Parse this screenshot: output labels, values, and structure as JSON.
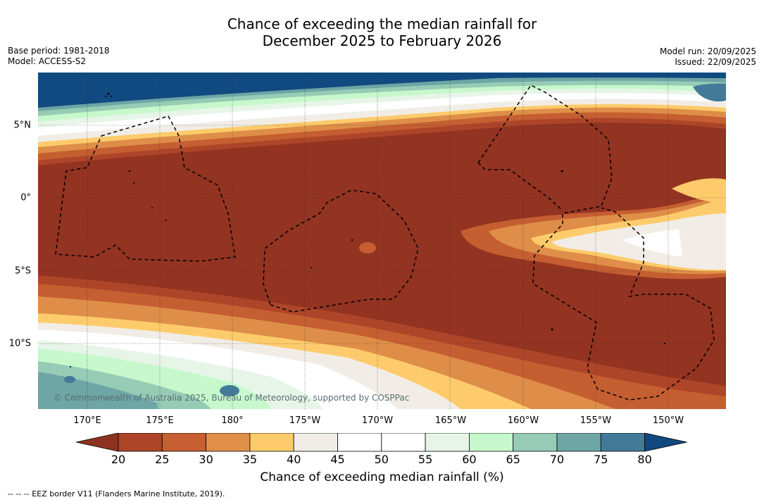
{
  "title_line1": "Chance of exceeding the median rainfall for",
  "title_line2": "December 2025 to February 2026",
  "base_period": "Base period: 1981-2018",
  "model": "Model: ACCESS-S2",
  "model_run": "Model run: 20/09/2025",
  "issued": "Issued: 22/09/2025",
  "copyright": "© Commonwealth of Australia 2025, Bureau of Meteorology, supported by COSPPac",
  "lon_labels": [
    "170°E",
    "175°E",
    "180°",
    "175°W",
    "170°W",
    "165°W",
    "160°W",
    "155°W",
    "150°W"
  ],
  "lat_labels": [
    "5°N",
    "0°",
    "5°S",
    "10°S"
  ],
  "colorbar": {
    "ticks": [
      "20",
      "25",
      "30",
      "35",
      "40",
      "45",
      "50",
      "55",
      "60",
      "65",
      "70",
      "75",
      "80"
    ],
    "colors": [
      "#8e3220",
      "#ad4428",
      "#c85f32",
      "#e08f48",
      "#fecb6a",
      "#f0ede7",
      "#ffffff",
      "#ffffff",
      "#e6f5e7",
      "#c6f8cc",
      "#96cbb5",
      "#6ea5a5",
      "#437a99",
      "#11487f"
    ],
    "title": "Chance of exceeding median rainfall (%)"
  },
  "footer": "--  --  -- EEZ border V11 (Flanders Marine Institute, 2019)."
}
